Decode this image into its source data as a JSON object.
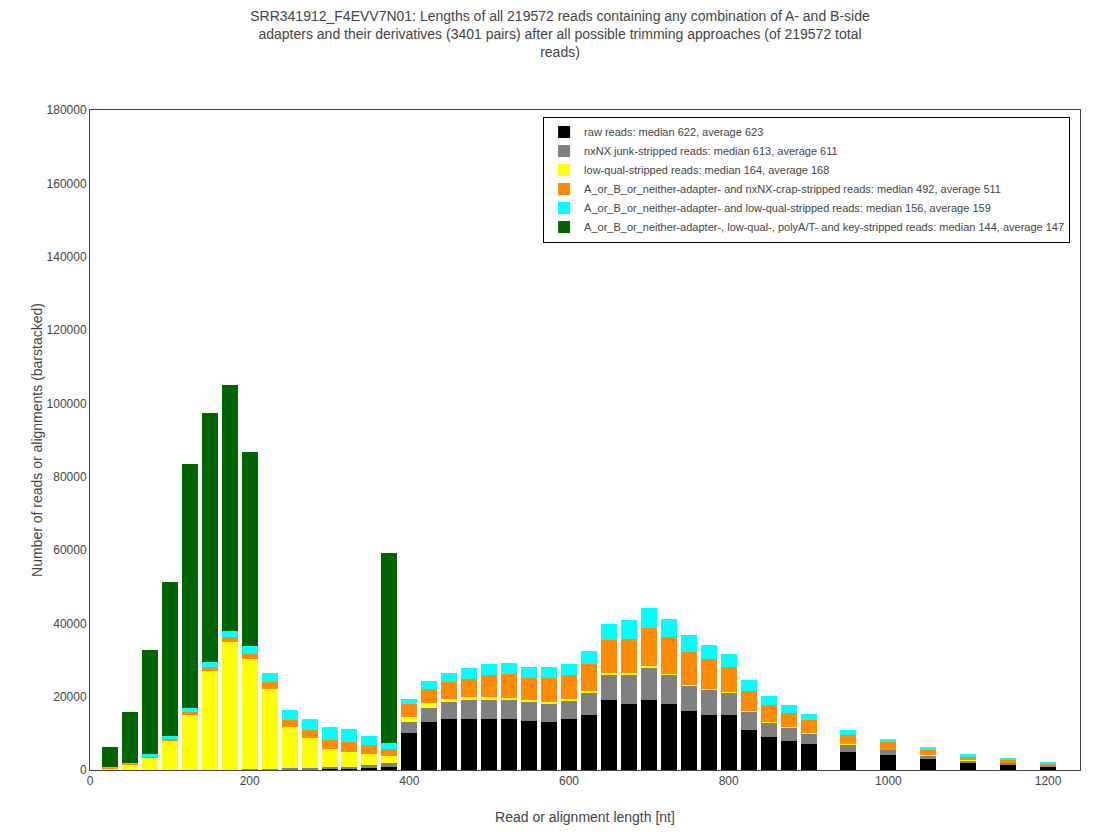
{
  "chart_data": {
    "type": "bar",
    "stacked": true,
    "title": "SRR341912_F4EVV7N01: Lengths of all 219572 reads containing any combination of A- and B-side\nadapters and their derivatives (3401 pairs) after all possible trimming approaches (of 219572 total\nreads)",
    "xlabel": "Read or alignment length [nt]",
    "ylabel": "Number of reads or alignments (barstacked)",
    "xlim": [
      0,
      1240
    ],
    "ylim": [
      0,
      180000
    ],
    "xticks": [
      0,
      200,
      400,
      600,
      800,
      1000,
      1200
    ],
    "yticks": [
      0,
      20000,
      40000,
      60000,
      80000,
      100000,
      120000,
      140000,
      160000,
      180000
    ],
    "grid": false,
    "legend": "upper right",
    "x": [
      25,
      50,
      75,
      100,
      125,
      150,
      175,
      200,
      225,
      250,
      275,
      300,
      325,
      350,
      375,
      400,
      425,
      450,
      475,
      500,
      525,
      550,
      575,
      600,
      625,
      650,
      675,
      700,
      725,
      750,
      775,
      800,
      825,
      850,
      875,
      900,
      950,
      1000,
      1050,
      1100,
      1150,
      1200
    ],
    "series": [
      {
        "name": "raw reads: median 622, average 623",
        "color": "#000000",
        "values": [
          0,
          0,
          0,
          0,
          0,
          0,
          0,
          0,
          0,
          200,
          200,
          300,
          300,
          500,
          800,
          10000,
          13000,
          14000,
          14000,
          14000,
          14000,
          13500,
          13000,
          14000,
          15000,
          19000,
          18000,
          19000,
          18000,
          16000,
          15000,
          15000,
          11000,
          9000,
          8000,
          7000,
          5000,
          4000,
          3000,
          2000,
          1500,
          1000
        ]
      },
      {
        "name": "nxNX junk-stripped reads: median 613, average 611",
        "color": "#808080",
        "values": [
          0,
          0,
          0,
          0,
          0,
          0,
          0,
          200,
          200,
          400,
          400,
          500,
          600,
          800,
          1000,
          3000,
          4000,
          4500,
          5000,
          5000,
          5000,
          5000,
          5000,
          5000,
          6000,
          7000,
          8000,
          9000,
          8000,
          7000,
          7000,
          6000,
          5000,
          4000,
          3500,
          3000,
          2000,
          1500,
          1000,
          700,
          500,
          300
        ]
      },
      {
        "name": "low-qual-stripped reads: median 164, average 168",
        "color": "#ffff00",
        "values": [
          500,
          1500,
          3500,
          8000,
          15000,
          27000,
          35000,
          30000,
          22000,
          11000,
          8000,
          5000,
          4000,
          3000,
          2000,
          1500,
          1200,
          1000,
          900,
          800,
          700,
          600,
          550,
          500,
          450,
          400,
          350,
          300,
          250,
          200,
          180,
          160,
          140,
          120,
          100,
          90,
          80,
          70,
          60,
          50,
          40,
          30
        ]
      },
      {
        "name": "A_or_B_or_neither-adapter- and nxNX-crap-stripped reads: median 492, average 511",
        "color": "#ff8c00",
        "values": [
          100,
          200,
          300,
          500,
          700,
          1000,
          1200,
          1500,
          1800,
          2000,
          2200,
          2500,
          2800,
          2500,
          2000,
          3500,
          4000,
          4500,
          5000,
          6000,
          6500,
          6000,
          6500,
          6500,
          7500,
          9000,
          9500,
          10500,
          10000,
          9000,
          8000,
          7000,
          5500,
          4500,
          4000,
          3500,
          2500,
          2000,
          1500,
          1000,
          700,
          400
        ]
      },
      {
        "name": "A_or_B_or_neither-adapter- and low-qual-stripped reads: median 156, average 159",
        "color": "#00ffff",
        "values": [
          100,
          200,
          500,
          800,
          1200,
          1500,
          1800,
          2000,
          2500,
          2800,
          3000,
          3500,
          3500,
          2500,
          1500,
          1500,
          2000,
          2500,
          3000,
          3000,
          3000,
          3000,
          3000,
          3000,
          3500,
          4500,
          5000,
          5500,
          5000,
          4500,
          4000,
          3500,
          3000,
          2500,
          2200,
          1800,
          1300,
          1000,
          700,
          500,
          350,
          200
        ]
      },
      {
        "name": "A_or_B_or_neither-adapter-, low-qual-, polyA/T- and key-stripped reads: median 144, average 147",
        "color": "#006400",
        "values": [
          5500,
          14000,
          28500,
          42000,
          66500,
          68000,
          67000,
          53000,
          0,
          0,
          0,
          0,
          0,
          0,
          52000,
          0,
          0,
          0,
          0,
          0,
          0,
          0,
          0,
          0,
          0,
          0,
          0,
          0,
          0,
          0,
          0,
          0,
          0,
          0,
          0,
          0,
          0,
          0,
          0,
          0,
          0,
          0
        ]
      }
    ]
  }
}
